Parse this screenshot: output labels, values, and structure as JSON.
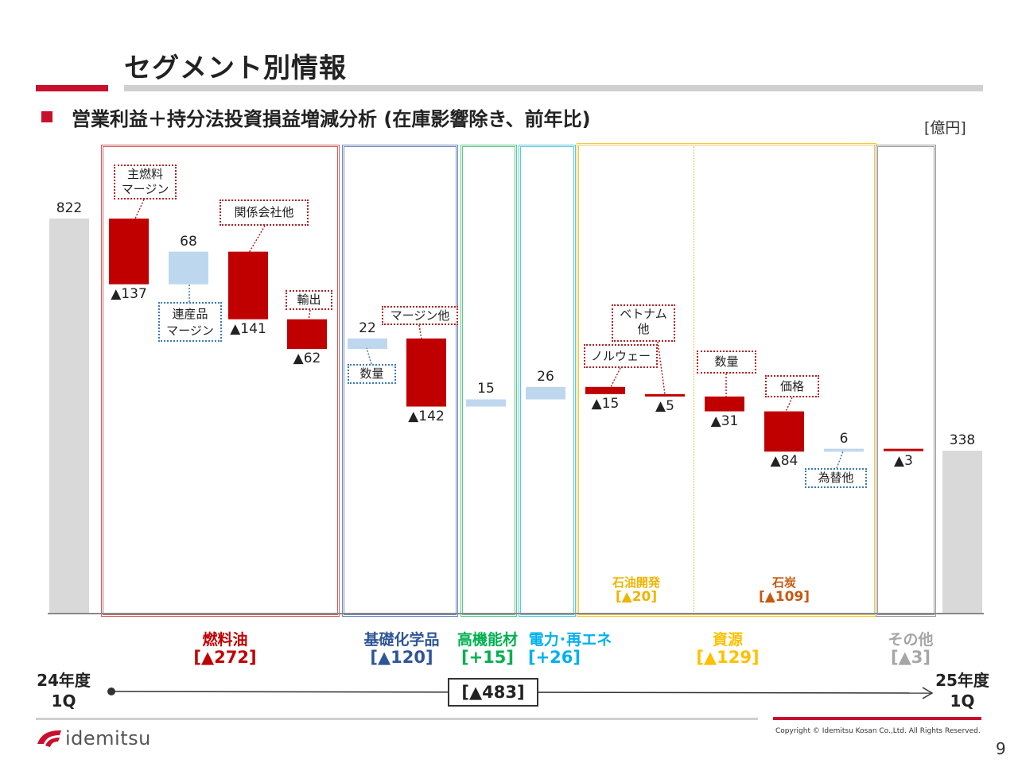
{
  "title": "セグメント別情報",
  "subtitle": "営業利益＋持分法投資損益増減分析 (在庫影響除き、前年比)",
  "unit": "[億円]",
  "colors": {
    "decrease": "#c00000",
    "increase": "#bdd7ee",
    "total": "#d9d9d9",
    "fuel_oil": "#c00000",
    "basic_chem": "#2f5597",
    "functional": "#00b050",
    "power": "#00b0f0",
    "resources": "#ffc000",
    "coal": "#c55a11",
    "other": "#a6a6a6"
  },
  "segments": {
    "fuel_oil": {
      "name": "燃料油",
      "value": "[▲272]"
    },
    "basic_chem": {
      "name": "基礎化学品",
      "value": "[▲120]"
    },
    "functional": {
      "name": "高機能材",
      "value": "[+15]"
    },
    "power": {
      "name": "電力･再エネ",
      "value": "[+26]"
    },
    "resources": {
      "name": "資源",
      "value": "[▲129]"
    },
    "other": {
      "name": "その他",
      "value": "[▲3]"
    }
  },
  "sub_segments": {
    "oil_dev": {
      "name": "石油開発",
      "value": "[▲20]"
    },
    "coal": {
      "name": "石炭",
      "value": "[▲109]"
    }
  },
  "callouts": {
    "main_fuel_margin": "主燃料\nマージン",
    "byproduct_margin": "連産品\nマージン",
    "affiliates": "関係会社他",
    "export": "輸出",
    "volume_chem": "数量",
    "margin_other": "マージン他",
    "norway": "ノルウェー",
    "vietnam": "ベトナム\n他",
    "volume_coal": "数量",
    "price": "価格",
    "fx_other": "為替他"
  },
  "period_start": "24年度\n1Q",
  "period_end": "25年度\n1Q",
  "total_change": "[▲483]",
  "logo": "idemitsu",
  "copyright": "Copyright © Idemitsu Kosan Co.,Ltd.  All Rights Reserved.",
  "page_number": "9",
  "chart_data": {
    "type": "bar",
    "subtype": "waterfall",
    "categories": [
      "24年度1Q",
      "主燃料マージン",
      "連産品マージン",
      "関係会社他",
      "輸出",
      "数量",
      "マージン他",
      "高機能材",
      "電力･再エネ",
      "ノルウェー",
      "ベトナム他",
      "数量",
      "価格",
      "為替他",
      "その他",
      "25年度1Q"
    ],
    "values": [
      822,
      -137,
      68,
      -141,
      -62,
      22,
      -142,
      15,
      26,
      -15,
      -5,
      -31,
      -84,
      6,
      -3,
      338
    ],
    "labels": [
      "822",
      "▲137",
      "68",
      "▲141",
      "▲62",
      "22",
      "▲142",
      "15",
      "26",
      "▲15",
      "▲5",
      "▲31",
      "▲84",
      "6",
      "▲3",
      "338"
    ],
    "totals": [
      "24年度1Q",
      "25年度1Q"
    ]
  }
}
